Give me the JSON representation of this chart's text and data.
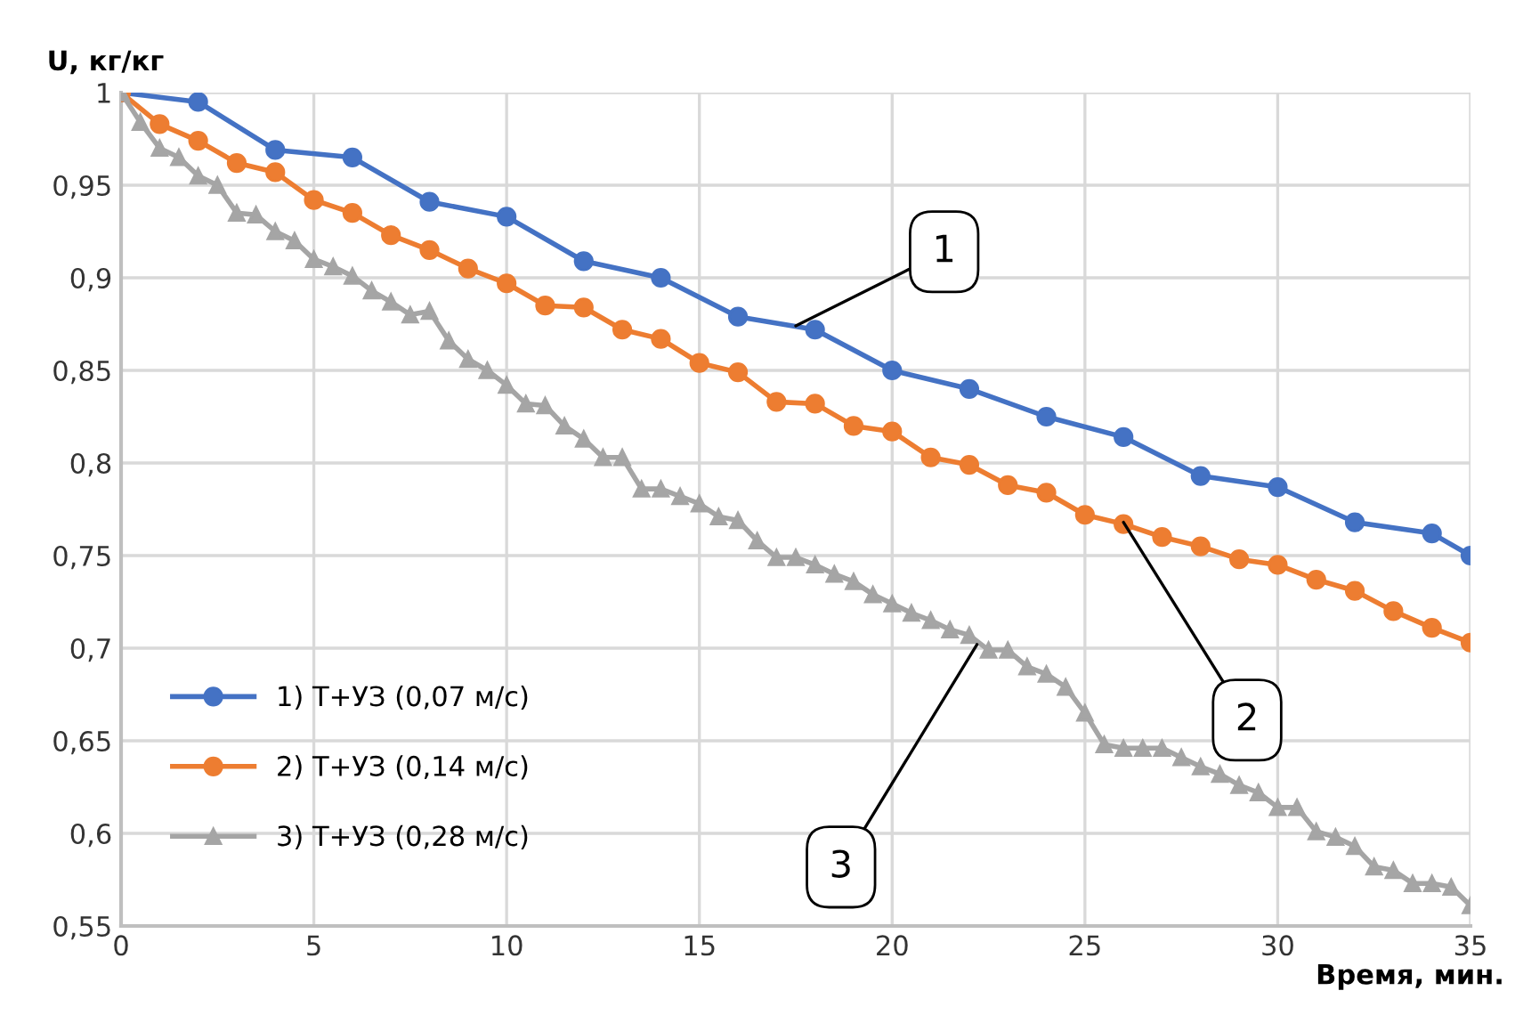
{
  "chart_data": {
    "type": "line",
    "xlabel": "Время, мин.",
    "ylabel": "U, кг/кг",
    "xlim": [
      0,
      35
    ],
    "xticks": [
      0,
      5,
      10,
      15,
      20,
      25,
      30,
      35
    ],
    "ylim": [
      0.55,
      1
    ],
    "yticks": [
      {
        "value": 0.55,
        "label": "0,55"
      },
      {
        "value": 0.6,
        "label": "0,6"
      },
      {
        "value": 0.65,
        "label": "0,65"
      },
      {
        "value": 0.7,
        "label": "0,7"
      },
      {
        "value": 0.75,
        "label": "0,75"
      },
      {
        "value": 0.8,
        "label": "0,8"
      },
      {
        "value": 0.85,
        "label": "0,85"
      },
      {
        "value": 0.9,
        "label": "0,9"
      },
      {
        "value": 0.95,
        "label": "0,95"
      },
      {
        "value": 1,
        "label": "1"
      }
    ],
    "grid": true,
    "legend": "bottom left",
    "line_style": "solid",
    "series": [
      {
        "name": "1) Т+УЗ (0,07 м/с)",
        "color": "#4472c4",
        "marker": "circle",
        "x": [
          0,
          2,
          4,
          6,
          8,
          10,
          12,
          14,
          16,
          18,
          20,
          22,
          24,
          26,
          28,
          30,
          32,
          34,
          35
        ],
        "values": [
          1.0,
          0.995,
          0.969,
          0.965,
          0.941,
          0.933,
          0.909,
          0.9,
          0.879,
          0.872,
          0.85,
          0.84,
          0.825,
          0.814,
          0.793,
          0.787,
          0.768,
          0.762,
          0.75
        ]
      },
      {
        "name": "2) Т+УЗ (0,14 м/с)",
        "color": "#ed7d31",
        "marker": "circle",
        "x": [
          0,
          1,
          2,
          3,
          4,
          5,
          6,
          7,
          8,
          9,
          10,
          11,
          12,
          13,
          14,
          15,
          16,
          17,
          18,
          19,
          20,
          21,
          22,
          23,
          24,
          25,
          26,
          27,
          28,
          29,
          30,
          31,
          32,
          33,
          34,
          35
        ],
        "values": [
          1.0,
          0.983,
          0.974,
          0.962,
          0.957,
          0.942,
          0.935,
          0.923,
          0.915,
          0.905,
          0.897,
          0.885,
          0.884,
          0.872,
          0.867,
          0.854,
          0.849,
          0.833,
          0.832,
          0.82,
          0.817,
          0.803,
          0.799,
          0.788,
          0.784,
          0.772,
          0.767,
          0.76,
          0.755,
          0.748,
          0.745,
          0.737,
          0.731,
          0.72,
          0.711,
          0.703
        ]
      },
      {
        "name": "3) Т+УЗ (0,28 м/с)",
        "color": "#a5a5a5",
        "marker": "triangle",
        "x": [
          0,
          0.5,
          1,
          1.5,
          2,
          2.5,
          3,
          3.5,
          4,
          4.5,
          5,
          5.5,
          6,
          6.5,
          7,
          7.5,
          8,
          8.5,
          9,
          9.5,
          10,
          10.5,
          11,
          11.5,
          12,
          12.5,
          13,
          13.5,
          14,
          14.5,
          15,
          15.5,
          16,
          16.5,
          17,
          17.5,
          18,
          18.5,
          19,
          19.5,
          20,
          20.5,
          21,
          21.5,
          22,
          22.5,
          23,
          23.5,
          24,
          24.5,
          25,
          25.5,
          26,
          26.5,
          27,
          27.5,
          28,
          28.5,
          29,
          29.5,
          30,
          30.5,
          31,
          31.5,
          32,
          32.5,
          33,
          33.5,
          34,
          34.5,
          35
        ],
        "values": [
          1.0,
          0.984,
          0.97,
          0.965,
          0.955,
          0.95,
          0.935,
          0.934,
          0.925,
          0.92,
          0.91,
          0.906,
          0.901,
          0.893,
          0.887,
          0.88,
          0.882,
          0.866,
          0.856,
          0.85,
          0.842,
          0.832,
          0.831,
          0.82,
          0.813,
          0.803,
          0.803,
          0.786,
          0.786,
          0.782,
          0.778,
          0.771,
          0.769,
          0.758,
          0.749,
          0.749,
          0.745,
          0.74,
          0.736,
          0.729,
          0.724,
          0.719,
          0.715,
          0.71,
          0.707,
          0.699,
          0.699,
          0.69,
          0.686,
          0.679,
          0.665,
          0.648,
          0.646,
          0.646,
          0.646,
          0.641,
          0.636,
          0.632,
          0.626,
          0.622,
          0.614,
          0.614,
          0.601,
          0.598,
          0.593,
          0.582,
          0.58,
          0.573,
          0.573,
          0.571,
          0.561
        ]
      }
    ],
    "annotations": [
      {
        "text": "1",
        "x": 17.5,
        "y": 0.874
      },
      {
        "text": "2",
        "x": 26,
        "y": 0.768
      },
      {
        "text": "3",
        "x": 22.2,
        "y": 0.702
      }
    ]
  }
}
